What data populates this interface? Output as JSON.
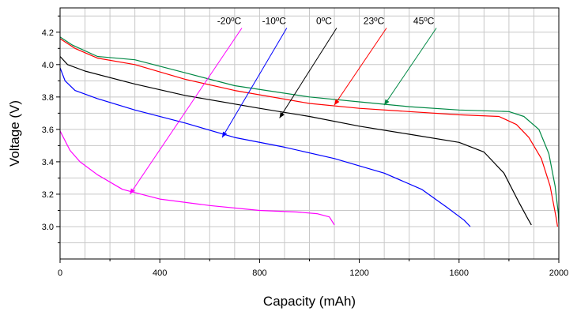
{
  "chart_data": {
    "type": "line",
    "title": "",
    "xlabel": "Capacity (mAh)",
    "ylabel": "Voltage (V)",
    "xlim": [
      0,
      2000
    ],
    "ylim": [
      2.8,
      4.35
    ],
    "x_ticks": [
      0,
      400,
      800,
      1200,
      1600,
      2000
    ],
    "x_tick_labels": [
      "0",
      "400",
      "800",
      "1200",
      "1600",
      "2000"
    ],
    "y_ticks": [
      3.0,
      3.2,
      3.4,
      3.6,
      3.8,
      4.0,
      4.2
    ],
    "y_tick_labels": [
      "3.0",
      "3.2",
      "3.4",
      "3.6",
      "3.8",
      "4.0",
      "4.2"
    ],
    "grid": true,
    "legend": "annotations-with-arrows",
    "series": [
      {
        "name": "-20ºC",
        "color": "#ff00ff",
        "label_at": [
          710,
          4.25
        ],
        "arrow_to": [
          280,
          3.2
        ],
        "points": [
          [
            0,
            3.59
          ],
          [
            40,
            3.47
          ],
          [
            80,
            3.4
          ],
          [
            150,
            3.32
          ],
          [
            250,
            3.23
          ],
          [
            400,
            3.17
          ],
          [
            600,
            3.13
          ],
          [
            800,
            3.1
          ],
          [
            950,
            3.09
          ],
          [
            1030,
            3.08
          ],
          [
            1080,
            3.06
          ],
          [
            1100,
            3.01
          ]
        ]
      },
      {
        "name": "-10ºC",
        "color": "#0000ff",
        "label_at": [
          890,
          4.25
        ],
        "arrow_to": [
          650,
          3.55
        ],
        "points": [
          [
            0,
            3.98
          ],
          [
            20,
            3.9
          ],
          [
            60,
            3.84
          ],
          [
            150,
            3.79
          ],
          [
            300,
            3.72
          ],
          [
            500,
            3.64
          ],
          [
            700,
            3.55
          ],
          [
            900,
            3.49
          ],
          [
            1100,
            3.42
          ],
          [
            1300,
            3.33
          ],
          [
            1450,
            3.23
          ],
          [
            1550,
            3.12
          ],
          [
            1620,
            3.04
          ],
          [
            1645,
            3.0
          ]
        ]
      },
      {
        "name": "0ºC",
        "color": "#000000",
        "label_at": [
          1090,
          4.25
        ],
        "arrow_to": [
          880,
          3.67
        ],
        "points": [
          [
            0,
            4.05
          ],
          [
            30,
            4.0
          ],
          [
            100,
            3.96
          ],
          [
            300,
            3.88
          ],
          [
            500,
            3.81
          ],
          [
            800,
            3.73
          ],
          [
            1000,
            3.68
          ],
          [
            1200,
            3.62
          ],
          [
            1400,
            3.57
          ],
          [
            1600,
            3.52
          ],
          [
            1700,
            3.46
          ],
          [
            1780,
            3.33
          ],
          [
            1840,
            3.15
          ],
          [
            1875,
            3.05
          ],
          [
            1890,
            3.01
          ]
        ]
      },
      {
        "name": "23ºC",
        "color": "#ff0000",
        "label_at": [
          1290,
          4.25
        ],
        "arrow_to": [
          1100,
          3.75
        ],
        "points": [
          [
            0,
            4.16
          ],
          [
            60,
            4.1
          ],
          [
            150,
            4.04
          ],
          [
            300,
            4.0
          ],
          [
            500,
            3.91
          ],
          [
            700,
            3.84
          ],
          [
            1000,
            3.76
          ],
          [
            1200,
            3.73
          ],
          [
            1400,
            3.71
          ],
          [
            1600,
            3.69
          ],
          [
            1760,
            3.68
          ],
          [
            1830,
            3.63
          ],
          [
            1880,
            3.55
          ],
          [
            1930,
            3.42
          ],
          [
            1965,
            3.25
          ],
          [
            1990,
            3.05
          ],
          [
            1995,
            3.0
          ]
        ]
      },
      {
        "name": "45ºC",
        "color": "#008844",
        "label_at": [
          1490,
          4.25
        ],
        "arrow_to": [
          1300,
          3.75
        ],
        "points": [
          [
            0,
            4.17
          ],
          [
            50,
            4.12
          ],
          [
            150,
            4.05
          ],
          [
            300,
            4.03
          ],
          [
            500,
            3.95
          ],
          [
            700,
            3.87
          ],
          [
            1000,
            3.8
          ],
          [
            1200,
            3.77
          ],
          [
            1400,
            3.74
          ],
          [
            1600,
            3.72
          ],
          [
            1800,
            3.71
          ],
          [
            1860,
            3.68
          ],
          [
            1920,
            3.6
          ],
          [
            1960,
            3.45
          ],
          [
            1985,
            3.25
          ],
          [
            1998,
            3.08
          ],
          [
            2000,
            3.02
          ]
        ]
      }
    ]
  }
}
